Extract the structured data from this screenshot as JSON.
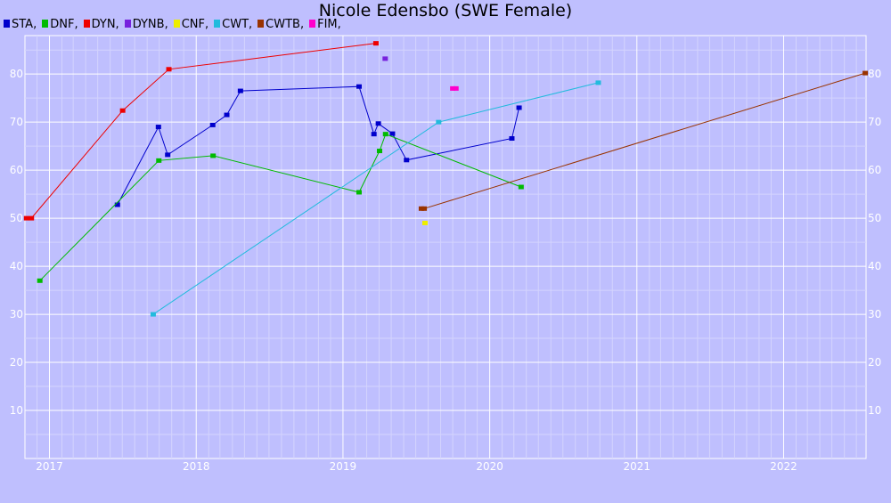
{
  "chart_data": {
    "type": "line",
    "title": "Nicole Edensbo (SWE Female)",
    "xlabel": "",
    "ylabel": "",
    "xlim": [
      "2016-11-01",
      "2022-07-25"
    ],
    "ylim": [
      0,
      88
    ],
    "x_ticks": [
      "2017",
      "2018",
      "2019",
      "2020",
      "2021",
      "2022"
    ],
    "y_ticks": [
      10,
      20,
      30,
      40,
      50,
      60,
      70,
      80
    ],
    "grid": true,
    "legend_position": "top-left",
    "series": [
      {
        "name": "STA",
        "color": "#0000cc",
        "points": [
          [
            "2017-06-19",
            52.8
          ],
          [
            "2017-09-29",
            69
          ],
          [
            "2017-10-22",
            63.2
          ],
          [
            "2018-02-11",
            69.4
          ],
          [
            "2018-03-18",
            71.5
          ],
          [
            "2018-04-21",
            76.5
          ],
          [
            "2019-02-10",
            77.4
          ],
          [
            "2019-03-19",
            67.5
          ],
          [
            "2019-03-30",
            69.7
          ],
          [
            "2019-05-04",
            67.6
          ],
          [
            "2019-06-08",
            62.1
          ],
          [
            "2020-02-25",
            66.6
          ],
          [
            "2020-03-14",
            73
          ]
        ]
      },
      {
        "name": "DNF",
        "color": "#00bb00",
        "points": [
          [
            "2016-12-08",
            37
          ],
          [
            "2017-09-30",
            62
          ],
          [
            "2018-02-12",
            63
          ],
          [
            "2019-02-10",
            55.4
          ],
          [
            "2019-04-02",
            64
          ],
          [
            "2019-04-17",
            67.5
          ],
          [
            "2020-03-19",
            56.5
          ]
        ]
      },
      {
        "name": "DYN",
        "color": "#ee0000",
        "points": [
          [
            "2016-11-05",
            50
          ],
          [
            "2016-11-17",
            50
          ],
          [
            "2017-07-02",
            72.4
          ],
          [
            "2017-10-25",
            81
          ],
          [
            "2019-03-24",
            86.4
          ]
        ]
      },
      {
        "name": "DYNB",
        "color": "#7722dd",
        "points": [
          [
            "2019-04-16",
            83.2
          ]
        ]
      },
      {
        "name": "CNF",
        "color": "#eeee00",
        "points": [
          [
            "2019-07-24",
            49
          ]
        ]
      },
      {
        "name": "CWT",
        "color": "#22bbdd",
        "points": [
          [
            "2017-09-16",
            30
          ],
          [
            "2019-08-27",
            70
          ],
          [
            "2020-09-27",
            78.2
          ]
        ]
      },
      {
        "name": "CWTB",
        "color": "#993300",
        "points": [
          [
            "2019-07-15",
            52
          ],
          [
            "2019-07-22",
            52
          ],
          [
            "2022-07-23",
            80.2
          ]
        ]
      },
      {
        "name": "FIM",
        "color": "#ff00cc",
        "points": [
          [
            "2019-10-01",
            77
          ],
          [
            "2019-10-09",
            77
          ]
        ]
      }
    ]
  }
}
